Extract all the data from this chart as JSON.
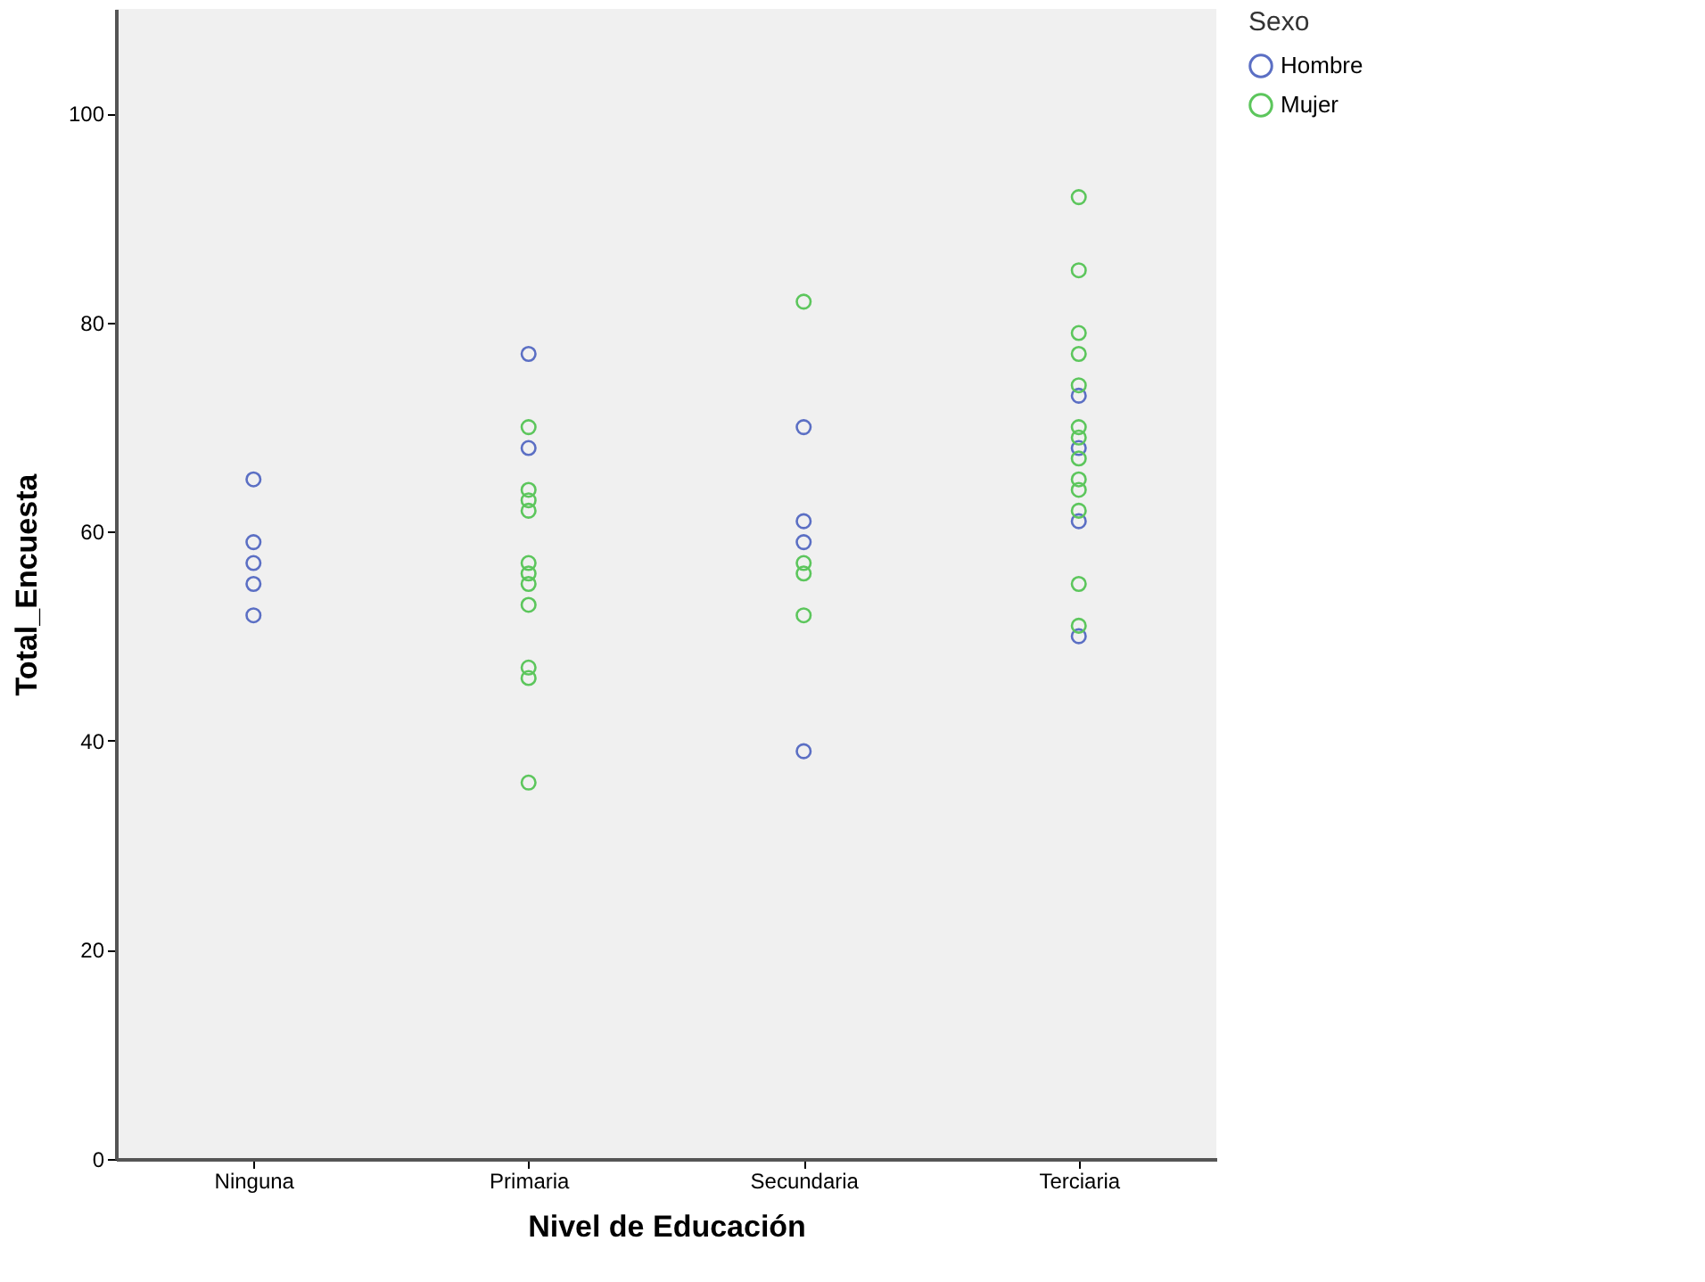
{
  "chart_data": {
    "type": "scatter",
    "xlabel": "Nivel de Educación",
    "ylabel": "Total_Encuesta",
    "legend_title": "Sexo",
    "categories": [
      "Ninguna",
      "Primaria",
      "Secundaria",
      "Terciaria"
    ],
    "ylim": [
      0,
      110
    ],
    "yticks": [
      0,
      20,
      40,
      60,
      80,
      100
    ],
    "grid": false,
    "legend": "top right",
    "marker": "circle",
    "series": [
      {
        "name": "Hombre",
        "color": "#5b6fc4",
        "x": [
          "Ninguna",
          "Ninguna",
          "Ninguna",
          "Ninguna",
          "Ninguna",
          "Primaria",
          "Primaria",
          "Secundaria",
          "Secundaria",
          "Secundaria",
          "Secundaria",
          "Terciaria",
          "Terciaria",
          "Terciaria",
          "Terciaria"
        ],
        "values": [
          65,
          59,
          57,
          55,
          52,
          77,
          68,
          70,
          61,
          59,
          39,
          73,
          68,
          61,
          50
        ]
      },
      {
        "name": "Mujer",
        "color": "#5cc65c",
        "x": [
          "Primaria",
          "Primaria",
          "Primaria",
          "Primaria",
          "Primaria",
          "Primaria",
          "Primaria",
          "Primaria",
          "Primaria",
          "Primaria",
          "Primaria",
          "Secundaria",
          "Secundaria",
          "Secundaria",
          "Secundaria",
          "Terciaria",
          "Terciaria",
          "Terciaria",
          "Terciaria",
          "Terciaria",
          "Terciaria",
          "Terciaria",
          "Terciaria",
          "Terciaria",
          "Terciaria",
          "Terciaria",
          "Terciaria",
          "Terciaria"
        ],
        "values": [
          70,
          64,
          63,
          62,
          57,
          56,
          55,
          53,
          47,
          46,
          36,
          82,
          57,
          56,
          52,
          92,
          85,
          79,
          77,
          74,
          70,
          69,
          67,
          65,
          64,
          62,
          55,
          51
        ]
      }
    ]
  }
}
